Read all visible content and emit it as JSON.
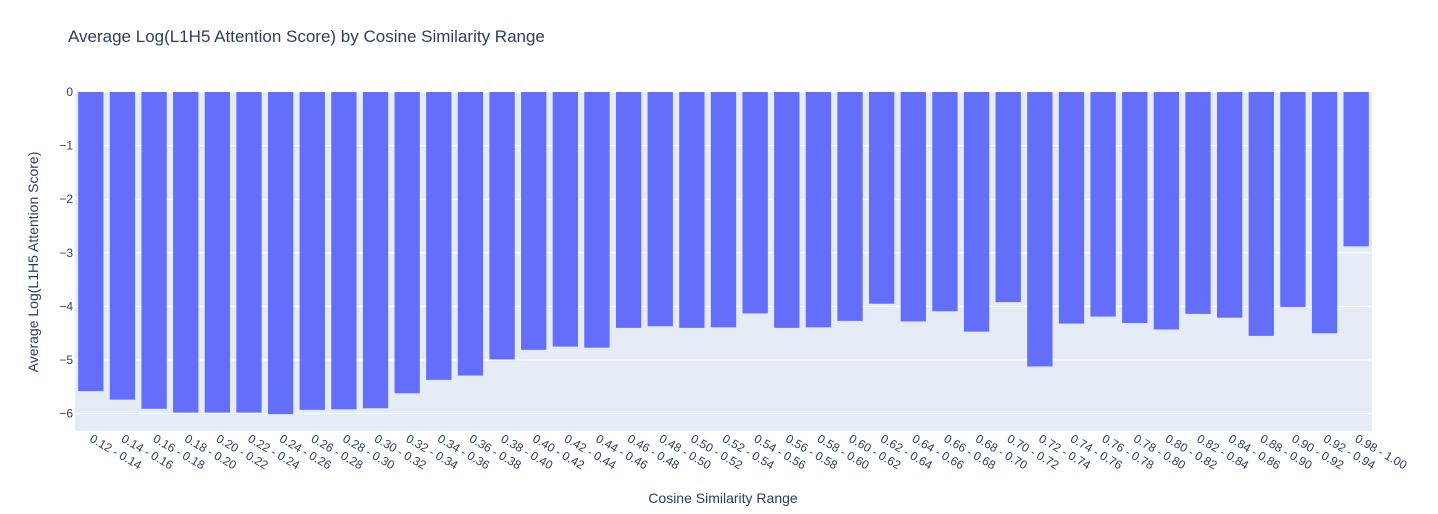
{
  "chart_data": {
    "type": "bar",
    "title": "Average Log(L1H5 Attention Score) by Cosine Similarity Range",
    "xlabel": "Cosine Similarity Range",
    "ylabel": "Average Log(L1H5 Attention Score)",
    "ylim": [
      -6.3,
      0
    ],
    "yticks": [
      0,
      -1,
      -2,
      -3,
      -4,
      -5,
      -6
    ],
    "ytick_labels": [
      "0",
      "−1",
      "−2",
      "−3",
      "−4",
      "−5",
      "−6"
    ],
    "grid": true,
    "legend": "none",
    "categories": [
      "0.12 - 0.14",
      "0.14 - 0.16",
      "0.16 - 0.18",
      "0.18 - 0.20",
      "0.20 - 0.22",
      "0.22 - 0.24",
      "0.24 - 0.26",
      "0.26 - 0.28",
      "0.28 - 0.30",
      "0.30 - 0.32",
      "0.32 - 0.34",
      "0.34 - 0.36",
      "0.36 - 0.38",
      "0.38 - 0.40",
      "0.40 - 0.42",
      "0.42 - 0.44",
      "0.44 - 0.46",
      "0.46 - 0.48",
      "0.48 - 0.50",
      "0.50 - 0.52",
      "0.52 - 0.54",
      "0.54 - 0.56",
      "0.56 - 0.58",
      "0.58 - 0.60",
      "0.60 - 0.62",
      "0.62 - 0.64",
      "0.64 - 0.66",
      "0.66 - 0.68",
      "0.68 - 0.70",
      "0.70 - 0.72",
      "0.72 - 0.74",
      "0.74 - 0.76",
      "0.76 - 0.78",
      "0.78 - 0.80",
      "0.80 - 0.82",
      "0.82 - 0.84",
      "0.84 - 0.86",
      "0.88 - 0.90",
      "0.90 - 0.92",
      "0.92 - 0.94",
      "0.98 - 1.00"
    ],
    "values": [
      -5.58,
      -5.74,
      -5.91,
      -5.98,
      -5.98,
      -5.98,
      -6.01,
      -5.93,
      -5.92,
      -5.9,
      -5.62,
      -5.37,
      -5.29,
      -4.99,
      -4.81,
      -4.75,
      -4.77,
      -4.4,
      -4.37,
      -4.4,
      -4.39,
      -4.13,
      -4.4,
      -4.39,
      -4.27,
      -3.95,
      -4.28,
      -4.09,
      -4.47,
      -3.92,
      -5.12,
      -4.32,
      -4.19,
      -4.31,
      -4.43,
      -4.14,
      -4.21,
      -4.55,
      -4.01,
      -4.5,
      -2.88
    ],
    "colors": {
      "bar": "#636efa",
      "plot_background": "#e5ecf6",
      "grid": "#ffffff",
      "text": "#2a3f5f"
    }
  }
}
